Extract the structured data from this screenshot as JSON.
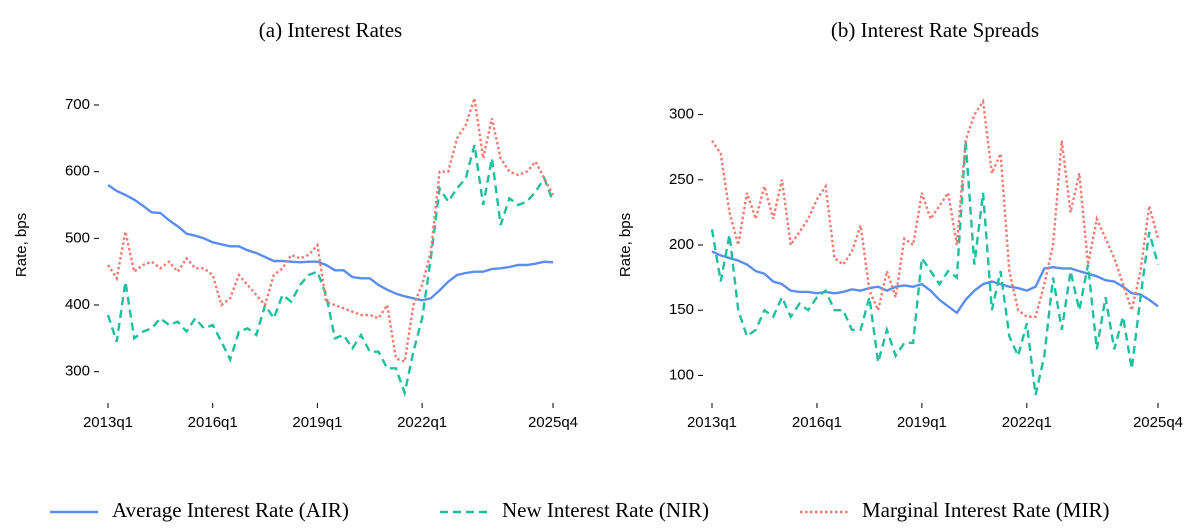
{
  "chart_data": [
    {
      "type": "line",
      "title": "(a) Interest Rates",
      "y_label": "Rate, bps",
      "categories": [
        "2013q1",
        null,
        null,
        null,
        null,
        null,
        null,
        null,
        null,
        null,
        null,
        null,
        "2016q1",
        null,
        null,
        null,
        null,
        null,
        null,
        null,
        null,
        null,
        null,
        null,
        "2019q1",
        null,
        null,
        null,
        null,
        null,
        null,
        null,
        null,
        null,
        null,
        null,
        "2022q1",
        null,
        null,
        null,
        null,
        null,
        null,
        null,
        null,
        null,
        null,
        null,
        null,
        null,
        null,
        "2025q4"
      ],
      "ylim": [
        265,
        715
      ],
      "yticks": [
        300,
        400,
        500,
        600,
        700
      ],
      "series": [
        {
          "name": "Average Interest Rate (AIR)",
          "color": "#5b8def",
          "dash": "solid",
          "values": [
            580,
            571,
            565,
            558,
            549,
            539,
            538,
            527,
            518,
            507,
            504,
            500,
            494,
            491,
            488,
            488,
            482,
            478,
            472,
            466,
            466,
            465,
            464,
            465,
            465,
            460,
            452,
            452,
            442,
            440,
            440,
            430,
            423,
            417,
            413,
            410,
            407,
            410,
            422,
            435,
            445,
            448,
            450,
            450,
            454,
            455,
            457,
            460,
            460,
            462,
            465,
            464
          ]
        },
        {
          "name": "New Interest Rate (NIR)",
          "color": "#1fbf9f",
          "dash": "dashed",
          "values": [
            385,
            345,
            435,
            350,
            360,
            365,
            380,
            370,
            375,
            360,
            380,
            365,
            370,
            345,
            318,
            360,
            365,
            355,
            400,
            380,
            415,
            405,
            430,
            445,
            450,
            415,
            350,
            355,
            335,
            355,
            330,
            330,
            305,
            305,
            268,
            330,
            380,
            470,
            575,
            555,
            575,
            590,
            640,
            550,
            620,
            520,
            560,
            550,
            555,
            570,
            590,
            555
          ]
        },
        {
          "name": "Marginal Interest Rate (MIR)",
          "color": "#ef7b72",
          "dash": "dotted",
          "values": [
            460,
            440,
            510,
            450,
            460,
            465,
            455,
            465,
            450,
            470,
            455,
            455,
            445,
            400,
            410,
            445,
            430,
            415,
            400,
            445,
            455,
            475,
            470,
            475,
            490,
            405,
            400,
            395,
            390,
            385,
            385,
            380,
            400,
            320,
            315,
            400,
            430,
            480,
            600,
            600,
            650,
            670,
            710,
            620,
            680,
            620,
            600,
            595,
            600,
            615,
            590,
            565
          ]
        }
      ]
    },
    {
      "type": "line",
      "title": "(b) Interest Rate Spreads",
      "y_label": "Rate, bps",
      "categories": [
        "2013q1",
        null,
        null,
        null,
        null,
        null,
        null,
        null,
        null,
        null,
        null,
        null,
        "2016q1",
        null,
        null,
        null,
        null,
        null,
        null,
        null,
        null,
        null,
        null,
        null,
        "2019q1",
        null,
        null,
        null,
        null,
        null,
        null,
        null,
        null,
        null,
        null,
        null,
        "2022q1",
        null,
        null,
        null,
        null,
        null,
        null,
        null,
        null,
        null,
        null,
        null,
        null,
        null,
        null,
        "2025q4"
      ],
      "ylim": [
        85,
        315
      ],
      "yticks": [
        100,
        150,
        200,
        250,
        300
      ],
      "series": [
        {
          "color": "#5b8def",
          "dash": "solid",
          "values": [
            195,
            192,
            190,
            188,
            185,
            180,
            178,
            172,
            170,
            165,
            164,
            164,
            163,
            164,
            163,
            164,
            166,
            165,
            167,
            168,
            165,
            168,
            169,
            168,
            170,
            165,
            158,
            153,
            148,
            158,
            165,
            170,
            172,
            170,
            168,
            167,
            165,
            168,
            182,
            183,
            182,
            182,
            180,
            178,
            176,
            173,
            172,
            168,
            163,
            162,
            158,
            153
          ]
        },
        {
          "color": "#1fbf9f",
          "dash": "dashed",
          "values": [
            212,
            172,
            208,
            150,
            130,
            135,
            150,
            145,
            160,
            145,
            155,
            150,
            160,
            165,
            150,
            150,
            135,
            135,
            160,
            110,
            135,
            115,
            125,
            125,
            190,
            180,
            170,
            180,
            175,
            280,
            185,
            240,
            150,
            180,
            130,
            115,
            140,
            85,
            115,
            175,
            135,
            180,
            150,
            185,
            120,
            160,
            120,
            145,
            105,
            160,
            210,
            185
          ]
        },
        {
          "color": "#ef7b72",
          "dash": "dotted",
          "values": [
            280,
            270,
            225,
            200,
            240,
            220,
            245,
            220,
            250,
            200,
            210,
            220,
            235,
            245,
            190,
            185,
            195,
            215,
            165,
            150,
            180,
            160,
            205,
            200,
            240,
            220,
            230,
            240,
            200,
            280,
            300,
            310,
            255,
            270,
            180,
            150,
            145,
            145,
            170,
            200,
            280,
            225,
            255,
            185,
            220,
            205,
            190,
            170,
            150,
            180,
            230,
            205
          ]
        }
      ]
    }
  ]
}
